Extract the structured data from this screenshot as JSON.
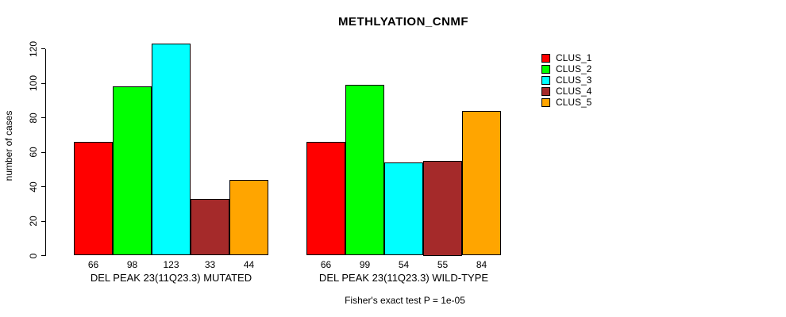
{
  "chart_data": {
    "type": "bar",
    "title": "METHLYATION_CNMF",
    "ylabel": "number of cases",
    "ylim": [
      0,
      123
    ],
    "yticks": [
      0,
      20,
      40,
      60,
      80,
      100,
      120
    ],
    "grid": false,
    "legend_position": "top-right",
    "series_names": [
      "CLUS_1",
      "CLUS_2",
      "CLUS_3",
      "CLUS_4",
      "CLUS_5"
    ],
    "colors": [
      "#FF0000",
      "#00FF00",
      "#00FFFF",
      "#A52A2A",
      "#FFA500"
    ],
    "groups": [
      {
        "label": "DEL PEAK 23(11Q23.3) MUTATED",
        "values": [
          66,
          98,
          123,
          33,
          44
        ]
      },
      {
        "label": "DEL PEAK 23(11Q23.3) WILD-TYPE",
        "values": [
          66,
          99,
          54,
          55,
          84
        ]
      }
    ],
    "footnote": "Fisher's exact test P = 1e-05"
  }
}
